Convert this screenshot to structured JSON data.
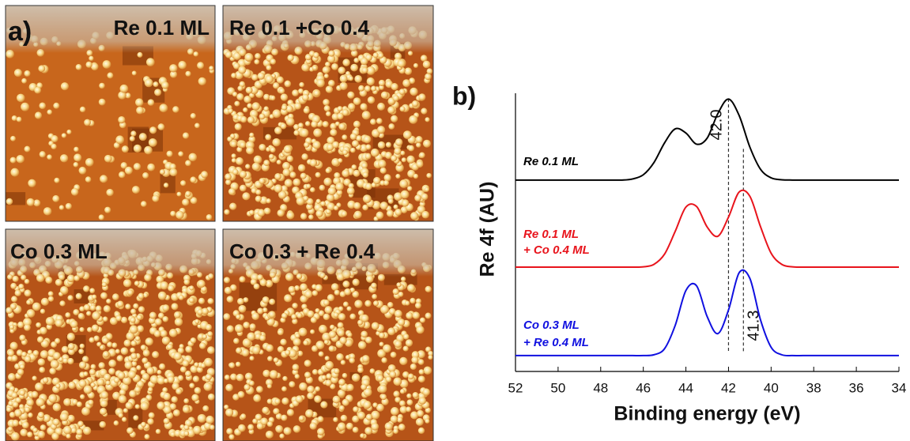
{
  "panel_a": {
    "label": "a)",
    "images": [
      "Re 0.1 ML",
      "Re 0.1 +Co 0.4",
      "Co 0.3 ML",
      "Co 0.3 + Re 0.4"
    ]
  },
  "chart_data": {
    "type": "line",
    "panel_label": "b)",
    "xlabel": "Binding energy (eV)",
    "ylabel": "Re 4f (AU)",
    "x": [
      52,
      51.5,
      51,
      50.5,
      50,
      49.5,
      49,
      48.5,
      48,
      47.5,
      47,
      46.5,
      46,
      45.5,
      45,
      44.5,
      44,
      43.5,
      43,
      42.5,
      42,
      41.5,
      41,
      40.5,
      40,
      39.5,
      39,
      38.5,
      38,
      37.5,
      37,
      36.5,
      36,
      35.5,
      35,
      34.5,
      34
    ],
    "xlim": [
      52,
      34
    ],
    "xticks": [
      52,
      50,
      48,
      46,
      44,
      42,
      40,
      38,
      36,
      34
    ],
    "ylim": [
      0,
      100
    ],
    "series": [
      {
        "label_lines": [
          "Re 0.1 ML"
        ],
        "color": "#000000",
        "values": [
          68.8,
          68.8,
          68.8,
          68.8,
          68.8,
          68.8,
          68.8,
          68.8,
          68.8,
          68.8,
          68.8,
          69.2,
          70.7,
          75.1,
          82.2,
          87.2,
          85.7,
          81.7,
          83.9,
          92.7,
          97.9,
          92.0,
          80.7,
          72.7,
          69.6,
          68.9,
          68.8,
          68.8,
          68.8,
          68.8,
          68.8,
          68.8,
          68.8,
          68.8,
          68.8,
          68.8,
          68.8
        ]
      },
      {
        "label_lines": [
          "Re 0.1 ML",
          "+ Co 0.4 ML"
        ],
        "color": "#e8141c",
        "values": [
          37.5,
          37.5,
          37.5,
          37.5,
          37.5,
          37.5,
          37.5,
          37.5,
          37.5,
          37.5,
          37.5,
          37.5,
          37.6,
          38.5,
          42.2,
          50.4,
          59.1,
          59.3,
          51.9,
          48.6,
          55.5,
          64.5,
          63.0,
          52.1,
          42.5,
          38.5,
          37.6,
          37.5,
          37.5,
          37.5,
          37.5,
          37.5,
          37.5,
          37.5,
          37.5,
          37.5,
          37.5
        ]
      },
      {
        "label_lines": [
          "Co 0.3 ML",
          "+ Re 0.4 ML"
        ],
        "color": "#1010e0",
        "values": [
          5.7,
          5.7,
          5.7,
          5.7,
          5.7,
          5.7,
          5.7,
          5.7,
          5.7,
          5.7,
          5.7,
          5.7,
          5.7,
          6.0,
          8.2,
          16.6,
          29.1,
          30.8,
          19.7,
          13.6,
          22.1,
          35.5,
          33.5,
          18.6,
          8.7,
          6.0,
          5.7,
          5.7,
          5.7,
          5.7,
          5.7,
          5.7,
          5.7,
          5.7,
          5.7,
          5.7,
          5.7
        ]
      }
    ],
    "markers": [
      {
        "value": 42.0,
        "label": "42.0"
      },
      {
        "value": 41.3,
        "label": "41.3"
      }
    ]
  }
}
